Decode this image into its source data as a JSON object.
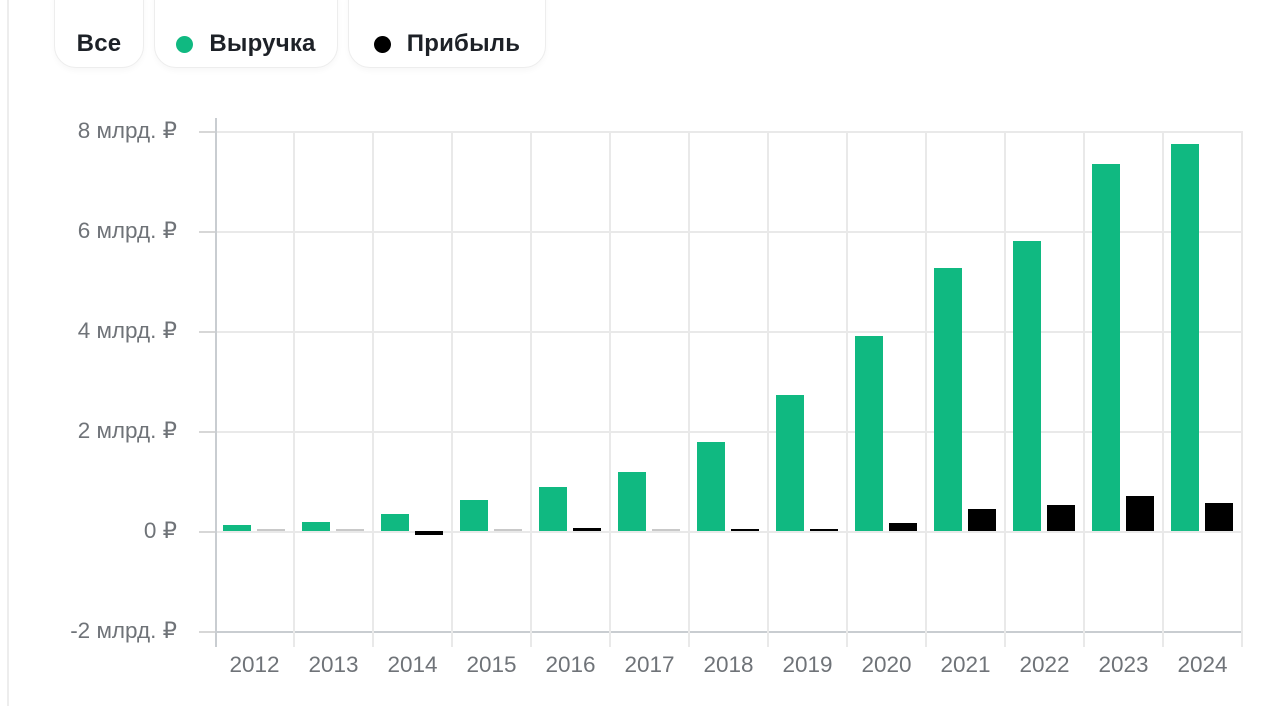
{
  "filters": {
    "all": {
      "label": "Все"
    },
    "revenue": {
      "label": "Выручка",
      "dot_color": "#10b981"
    },
    "profit": {
      "label": "Прибыль",
      "dot_color": "#000000"
    }
  },
  "chart_data": {
    "type": "bar",
    "title": "",
    "unit": "млрд ₽",
    "categories": [
      "2012",
      "2013",
      "2014",
      "2015",
      "2016",
      "2017",
      "2018",
      "2019",
      "2020",
      "2021",
      "2022",
      "2023",
      "2024"
    ],
    "series": [
      {
        "name": "Выручка",
        "color": "#10b981",
        "values": [
          0.12,
          0.18,
          0.35,
          0.63,
          0.89,
          1.19,
          1.79,
          2.72,
          3.9,
          5.26,
          5.8,
          7.35,
          7.75
        ]
      },
      {
        "name": "Прибыль",
        "color": "#000000",
        "values": [
          0.0,
          0.0,
          -0.07,
          0.0,
          0.06,
          0.0,
          0.05,
          0.05,
          0.17,
          0.45,
          0.52,
          0.7,
          0.57
        ]
      }
    ],
    "y_ticks": [
      {
        "value": 8,
        "label": "8 млрд. ₽"
      },
      {
        "value": 6,
        "label": "6 млрд. ₽"
      },
      {
        "value": 4,
        "label": "4 млрд. ₽"
      },
      {
        "value": 2,
        "label": "2 млрд. ₽"
      },
      {
        "value": 0,
        "label": "0 ₽"
      },
      {
        "value": -2,
        "label": "-2 млрд. ₽"
      }
    ],
    "ylim": [
      -2,
      8
    ],
    "grid": true,
    "legend_position": "top"
  }
}
